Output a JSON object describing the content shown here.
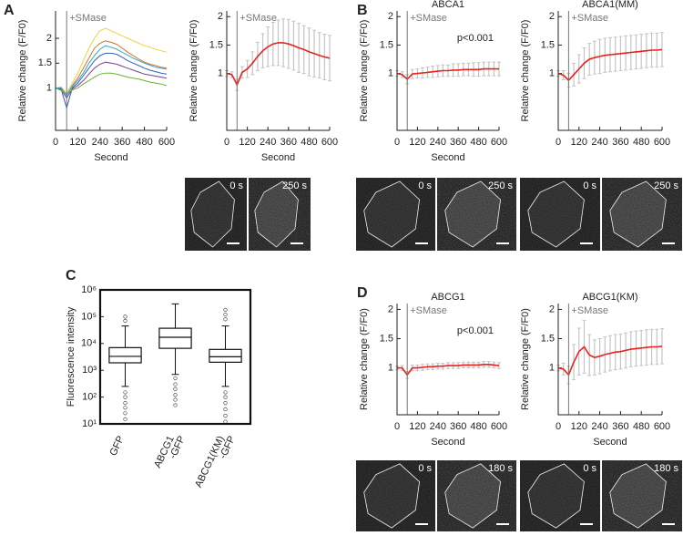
{
  "chart_data": [
    {
      "type": "line",
      "panel": "A",
      "x": [
        0,
        30,
        60,
        90,
        120,
        150,
        180,
        210,
        240,
        270,
        300,
        330,
        360,
        390,
        420,
        450,
        480,
        510,
        540,
        570,
        600
      ],
      "xlim": [
        0,
        600
      ],
      "xticks": [
        0,
        120,
        240,
        360,
        480,
        600
      ],
      "ylim": [
        0.15,
        2.55
      ],
      "yticks": [
        1,
        1.5,
        2
      ],
      "xlabel": "Second",
      "ylabel": "Relative change (F/F0)",
      "annotations": [
        {
          "text": "+SMase",
          "x": 60
        }
      ],
      "series": [
        {
          "color": "#f0d040",
          "values": [
            1,
            1.02,
            0.9,
            1.1,
            1.3,
            1.55,
            1.8,
            2.0,
            2.15,
            2.2,
            2.15,
            2.1,
            2.05,
            2.0,
            1.95,
            1.9,
            1.85,
            1.82,
            1.78,
            1.75,
            1.72
          ]
        },
        {
          "color": "#3060c0",
          "values": [
            1,
            0.98,
            0.6,
            1.0,
            1.1,
            1.25,
            1.4,
            1.55,
            1.65,
            1.7,
            1.7,
            1.68,
            1.62,
            1.55,
            1.5,
            1.45,
            1.4,
            1.36,
            1.33,
            1.3,
            1.28
          ]
        },
        {
          "color": "#e07020",
          "values": [
            1,
            1,
            0.85,
            1.05,
            1.2,
            1.4,
            1.6,
            1.8,
            1.9,
            1.95,
            1.92,
            1.88,
            1.8,
            1.72,
            1.65,
            1.58,
            1.52,
            1.48,
            1.45,
            1.42,
            1.4
          ]
        },
        {
          "color": "#7a3d9a",
          "values": [
            1,
            0.97,
            0.8,
            0.98,
            1.05,
            1.15,
            1.28,
            1.4,
            1.48,
            1.52,
            1.5,
            1.48,
            1.44,
            1.4,
            1.36,
            1.32,
            1.28,
            1.26,
            1.24,
            1.22,
            1.2
          ]
        },
        {
          "color": "#70b030",
          "values": [
            1,
            0.95,
            0.88,
            0.96,
            1.0,
            1.08,
            1.15,
            1.22,
            1.28,
            1.3,
            1.3,
            1.28,
            1.25,
            1.22,
            1.2,
            1.18,
            1.15,
            1.12,
            1.1,
            1.08,
            1.05
          ]
        },
        {
          "color": "#30a8d0",
          "values": [
            1,
            1.01,
            0.85,
            1.03,
            1.15,
            1.3,
            1.5,
            1.65,
            1.78,
            1.85,
            1.82,
            1.78,
            1.72,
            1.66,
            1.6,
            1.55,
            1.5,
            1.46,
            1.42,
            1.4,
            1.38
          ]
        }
      ]
    },
    {
      "type": "line",
      "x": [
        0,
        30,
        60,
        90,
        120,
        150,
        180,
        210,
        240,
        270,
        300,
        330,
        360,
        390,
        420,
        450,
        480,
        510,
        540,
        570,
        600
      ],
      "xlim": [
        0,
        600
      ],
      "xticks": [
        0,
        120,
        240,
        360,
        480,
        600
      ],
      "ylim": [
        0,
        2.1
      ],
      "yticks": [
        1,
        1.5,
        2
      ],
      "xlabel": "Second",
      "ylabel": "Relative change (F/F0)",
      "annotations": [
        {
          "text": "+SMase",
          "x": 60
        }
      ],
      "series": [
        {
          "color": "#e8231e",
          "values": [
            1,
            0.98,
            0.8,
            1.02,
            1.08,
            1.18,
            1.3,
            1.4,
            1.47,
            1.52,
            1.54,
            1.54,
            1.52,
            1.49,
            1.45,
            1.42,
            1.38,
            1.35,
            1.32,
            1.29,
            1.27
          ],
          "errors": [
            0.05,
            0.05,
            0.1,
            0.1,
            0.15,
            0.2,
            0.25,
            0.3,
            0.35,
            0.38,
            0.4,
            0.42,
            0.43,
            0.43,
            0.43,
            0.42,
            0.42,
            0.41,
            0.4,
            0.4,
            0.4
          ]
        }
      ]
    },
    {
      "type": "line",
      "panel": "B",
      "title": "ABCA1",
      "x": [
        0,
        30,
        60,
        90,
        120,
        150,
        180,
        210,
        240,
        270,
        300,
        330,
        360,
        390,
        420,
        450,
        480,
        510,
        540,
        570,
        600
      ],
      "xlim": [
        0,
        600
      ],
      "xticks": [
        0,
        120,
        240,
        360,
        480,
        600
      ],
      "ylim": [
        0,
        2.1
      ],
      "yticks": [
        1,
        1.5,
        2
      ],
      "xlabel": "Second",
      "ylabel": "Relative change (F/F0)",
      "annotations": [
        {
          "text": "+SMase",
          "x": 60
        }
      ],
      "note": "p<0.001",
      "series": [
        {
          "color": "#e8231e",
          "values": [
            1,
            0.98,
            0.9,
            0.99,
            1.0,
            1.01,
            1.02,
            1.03,
            1.04,
            1.05,
            1.05,
            1.06,
            1.06,
            1.07,
            1.07,
            1.07,
            1.07,
            1.08,
            1.08,
            1.08,
            1.08
          ],
          "errors": [
            0.05,
            0.05,
            0.08,
            0.08,
            0.08,
            0.09,
            0.09,
            0.1,
            0.1,
            0.1,
            0.1,
            0.11,
            0.11,
            0.11,
            0.11,
            0.12,
            0.12,
            0.12,
            0.12,
            0.12,
            0.12
          ]
        }
      ]
    },
    {
      "type": "line",
      "title": "ABCA1(MM)",
      "x": [
        0,
        30,
        60,
        90,
        120,
        150,
        180,
        210,
        240,
        270,
        300,
        330,
        360,
        390,
        420,
        450,
        480,
        510,
        540,
        570,
        600
      ],
      "xlim": [
        0,
        600
      ],
      "xticks": [
        0,
        120,
        240,
        360,
        480,
        600
      ],
      "ylim": [
        0,
        2.1
      ],
      "yticks": [
        1,
        1.5,
        2
      ],
      "ylabel": "Relative change (F/F0)",
      "annotations": [
        {
          "text": "+SMase",
          "x": 60
        }
      ],
      "series": [
        {
          "color": "#e8231e",
          "values": [
            1,
            0.97,
            0.88,
            0.98,
            1.08,
            1.18,
            1.25,
            1.28,
            1.3,
            1.32,
            1.33,
            1.34,
            1.35,
            1.36,
            1.37,
            1.38,
            1.39,
            1.4,
            1.41,
            1.41,
            1.42
          ],
          "errors": [
            0.05,
            0.08,
            0.12,
            0.2,
            0.25,
            0.27,
            0.28,
            0.29,
            0.3,
            0.3,
            0.3,
            0.3,
            0.3,
            0.3,
            0.3,
            0.3,
            0.3,
            0.3,
            0.3,
            0.3,
            0.3
          ]
        }
      ]
    },
    {
      "type": "box",
      "panel": "C",
      "log": true,
      "ylim": [
        10,
        1000000
      ],
      "yticks": [
        {
          "value": 10,
          "label": "10¹"
        },
        {
          "value": 100,
          "label": "10²"
        },
        {
          "value": 1000,
          "label": "10³"
        },
        {
          "value": 10000,
          "label": "10⁴"
        },
        {
          "value": 100000,
          "label": "10⁵"
        },
        {
          "value": 1000000,
          "label": "10⁶"
        }
      ],
      "ylabel": "Fluorescence intensity",
      "categories": [
        [
          "GFP"
        ],
        [
          "ABCG1",
          "-GFP"
        ],
        [
          "ABCG1(KM)",
          "-GFP"
        ]
      ],
      "boxes": [
        {
          "whisker_low": 250,
          "q1": 1900,
          "median": 3300,
          "q3": 7000,
          "whisker_high": 45000,
          "outliers": [
            100000,
            70000,
            150,
            100,
            60,
            40,
            25,
            15
          ]
        },
        {
          "whisker_low": 700,
          "q1": 6600,
          "median": 17000,
          "q3": 37000,
          "whisker_high": 300000,
          "outliers": [
            500,
            300,
            200,
            120,
            80,
            50
          ]
        },
        {
          "whisker_low": 250,
          "q1": 2000,
          "median": 3200,
          "q3": 6000,
          "whisker_high": 45000,
          "outliers": [
            180000,
            120000,
            80000,
            150,
            100,
            60,
            35,
            20,
            12
          ]
        }
      ]
    },
    {
      "type": "line",
      "panel": "D",
      "title": "ABCG1",
      "x": [
        0,
        30,
        60,
        90,
        120,
        150,
        180,
        210,
        240,
        270,
        300,
        330,
        360,
        390,
        420,
        450,
        480,
        510,
        540,
        570,
        600
      ],
      "xlim": [
        0,
        600
      ],
      "xticks": [
        0,
        120,
        240,
        360,
        480,
        600
      ],
      "ylim": [
        0.2,
        2.1
      ],
      "yticks": [
        1,
        1.5,
        2
      ],
      "xlabel": "Second",
      "ylabel": "Relative change (F/F0)",
      "annotations": [
        {
          "text": "+SMase",
          "x": 60
        }
      ],
      "note": "p<0.001",
      "series": [
        {
          "color": "#e8231e",
          "values": [
            1,
            1,
            0.88,
            1.0,
            1.0,
            1.01,
            1.02,
            1.02,
            1.03,
            1.03,
            1.04,
            1.04,
            1.04,
            1.05,
            1.05,
            1.05,
            1.05,
            1.06,
            1.06,
            1.05,
            1.04
          ],
          "errors": [
            0.03,
            0.04,
            0.06,
            0.05,
            0.05,
            0.05,
            0.05,
            0.05,
            0.05,
            0.05,
            0.05,
            0.05,
            0.05,
            0.05,
            0.05,
            0.05,
            0.05,
            0.05,
            0.05,
            0.05,
            0.05
          ]
        }
      ]
    },
    {
      "type": "line",
      "title": "ABCG1(KM)",
      "x": [
        0,
        30,
        60,
        90,
        120,
        150,
        180,
        210,
        240,
        270,
        300,
        330,
        360,
        390,
        420,
        450,
        480,
        510,
        540,
        570,
        600
      ],
      "xlim": [
        0,
        600
      ],
      "xticks": [
        0,
        120,
        240,
        360,
        480,
        600
      ],
      "ylim": [
        0.2,
        2.1
      ],
      "yticks": [
        1,
        1.5,
        2
      ],
      "xlabel": "Second",
      "ylabel": "Relative change (F/F0)",
      "annotations": [
        {
          "text": "+SMase",
          "x": 60
        }
      ],
      "series": [
        {
          "color": "#e8231e",
          "values": [
            1,
            0.98,
            0.88,
            1.1,
            1.28,
            1.36,
            1.22,
            1.18,
            1.2,
            1.23,
            1.25,
            1.27,
            1.28,
            1.3,
            1.32,
            1.33,
            1.34,
            1.35,
            1.36,
            1.36,
            1.37
          ],
          "errors": [
            0.05,
            0.1,
            0.15,
            0.3,
            0.4,
            0.45,
            0.35,
            0.3,
            0.3,
            0.3,
            0.3,
            0.3,
            0.3,
            0.3,
            0.3,
            0.3,
            0.3,
            0.3,
            0.3,
            0.3,
            0.3
          ]
        }
      ]
    }
  ],
  "micrographs": [
    {
      "labels": [
        "0 s",
        "250 s"
      ]
    },
    {
      "labels": [
        "0 s",
        "250 s"
      ]
    },
    {
      "labels": [
        "0 s",
        "250 s"
      ]
    },
    {
      "labels": [
        "0 s",
        "180 s"
      ]
    },
    {
      "labels": [
        "0 s",
        "180 s"
      ]
    }
  ]
}
